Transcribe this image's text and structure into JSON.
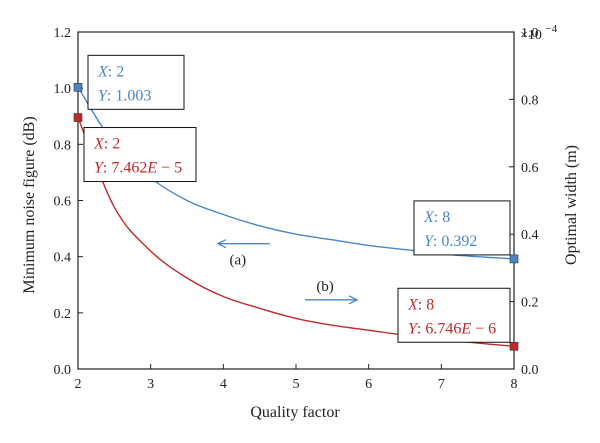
{
  "chart_data": {
    "type": "line",
    "xlabel": "Quality factor",
    "ylabel_left": "Minimum noise figure (dB)",
    "ylabel_right": "Optimal width (m)",
    "xlim": [
      2,
      8
    ],
    "ylim_left": [
      0,
      1.2
    ],
    "ylim_right": [
      0,
      1.0
    ],
    "right_axis_multiplier": "×10",
    "right_axis_exponent": "−4",
    "x_ticks": [
      "2",
      "3",
      "4",
      "5",
      "6",
      "7",
      "8"
    ],
    "y_ticks_left": [
      "0.0",
      "0.2",
      "0.4",
      "0.6",
      "0.8",
      "1.0",
      "1.2"
    ],
    "y_ticks_right": [
      "0.0",
      "0.2",
      "0.4",
      "0.6",
      "0.8",
      "1.0"
    ],
    "grid": false,
    "series": [
      {
        "axis": "left",
        "color": "#4a86c5",
        "x": [
          2,
          2.5,
          3,
          3.5,
          4,
          4.5,
          5,
          5.5,
          6,
          6.5,
          7,
          7.5,
          8
        ],
        "values": [
          1.003,
          0.8,
          0.68,
          0.6,
          0.55,
          0.51,
          0.48,
          0.46,
          0.44,
          0.425,
          0.41,
          0.4,
          0.392
        ]
      },
      {
        "axis": "right",
        "color": "#c0292a",
        "x": [
          2,
          2.5,
          3,
          3.5,
          4,
          4.5,
          5,
          5.5,
          6,
          6.5,
          7,
          7.5,
          8
        ],
        "values_e4": [
          0.7462,
          0.48,
          0.35,
          0.27,
          0.215,
          0.18,
          0.15,
          0.13,
          0.115,
          0.1,
          0.088,
          0.077,
          0.06746
        ]
      }
    ],
    "datatips": [
      {
        "series": 0,
        "x": 2,
        "y": 1.003,
        "x_text": "2",
        "y_text": "1.003",
        "anchor": "above-right",
        "color": "#4a86c5"
      },
      {
        "series": 0,
        "x": 8,
        "y": 0.392,
        "x_text": "8",
        "y_text": "0.392",
        "anchor": "above-left",
        "color": "#4a86c5"
      },
      {
        "series": 1,
        "x": 2,
        "y": 0.7462,
        "x_text": "2",
        "y_text": "7.462",
        "y_exp_text": "−5",
        "anchor": "below-right",
        "color": "#c0292a"
      },
      {
        "series": 1,
        "x": 8,
        "y": 0.06746,
        "x_text": "8",
        "y_text": "6.746",
        "y_exp_text": "−6",
        "anchor": "above-left",
        "color": "#c0292a"
      }
    ],
    "datatip_x_label": "X",
    "datatip_y_label": "Y",
    "datatip_exp_prefix": "E",
    "annotations": [
      {
        "label": "(a)",
        "x": 4.2,
        "y": 0.4,
        "arrow": "left"
      },
      {
        "label": "(b)",
        "x": 5.4,
        "y": 0.2,
        "arrow": "right"
      }
    ],
    "arrow_color": "#4a86c5"
  }
}
